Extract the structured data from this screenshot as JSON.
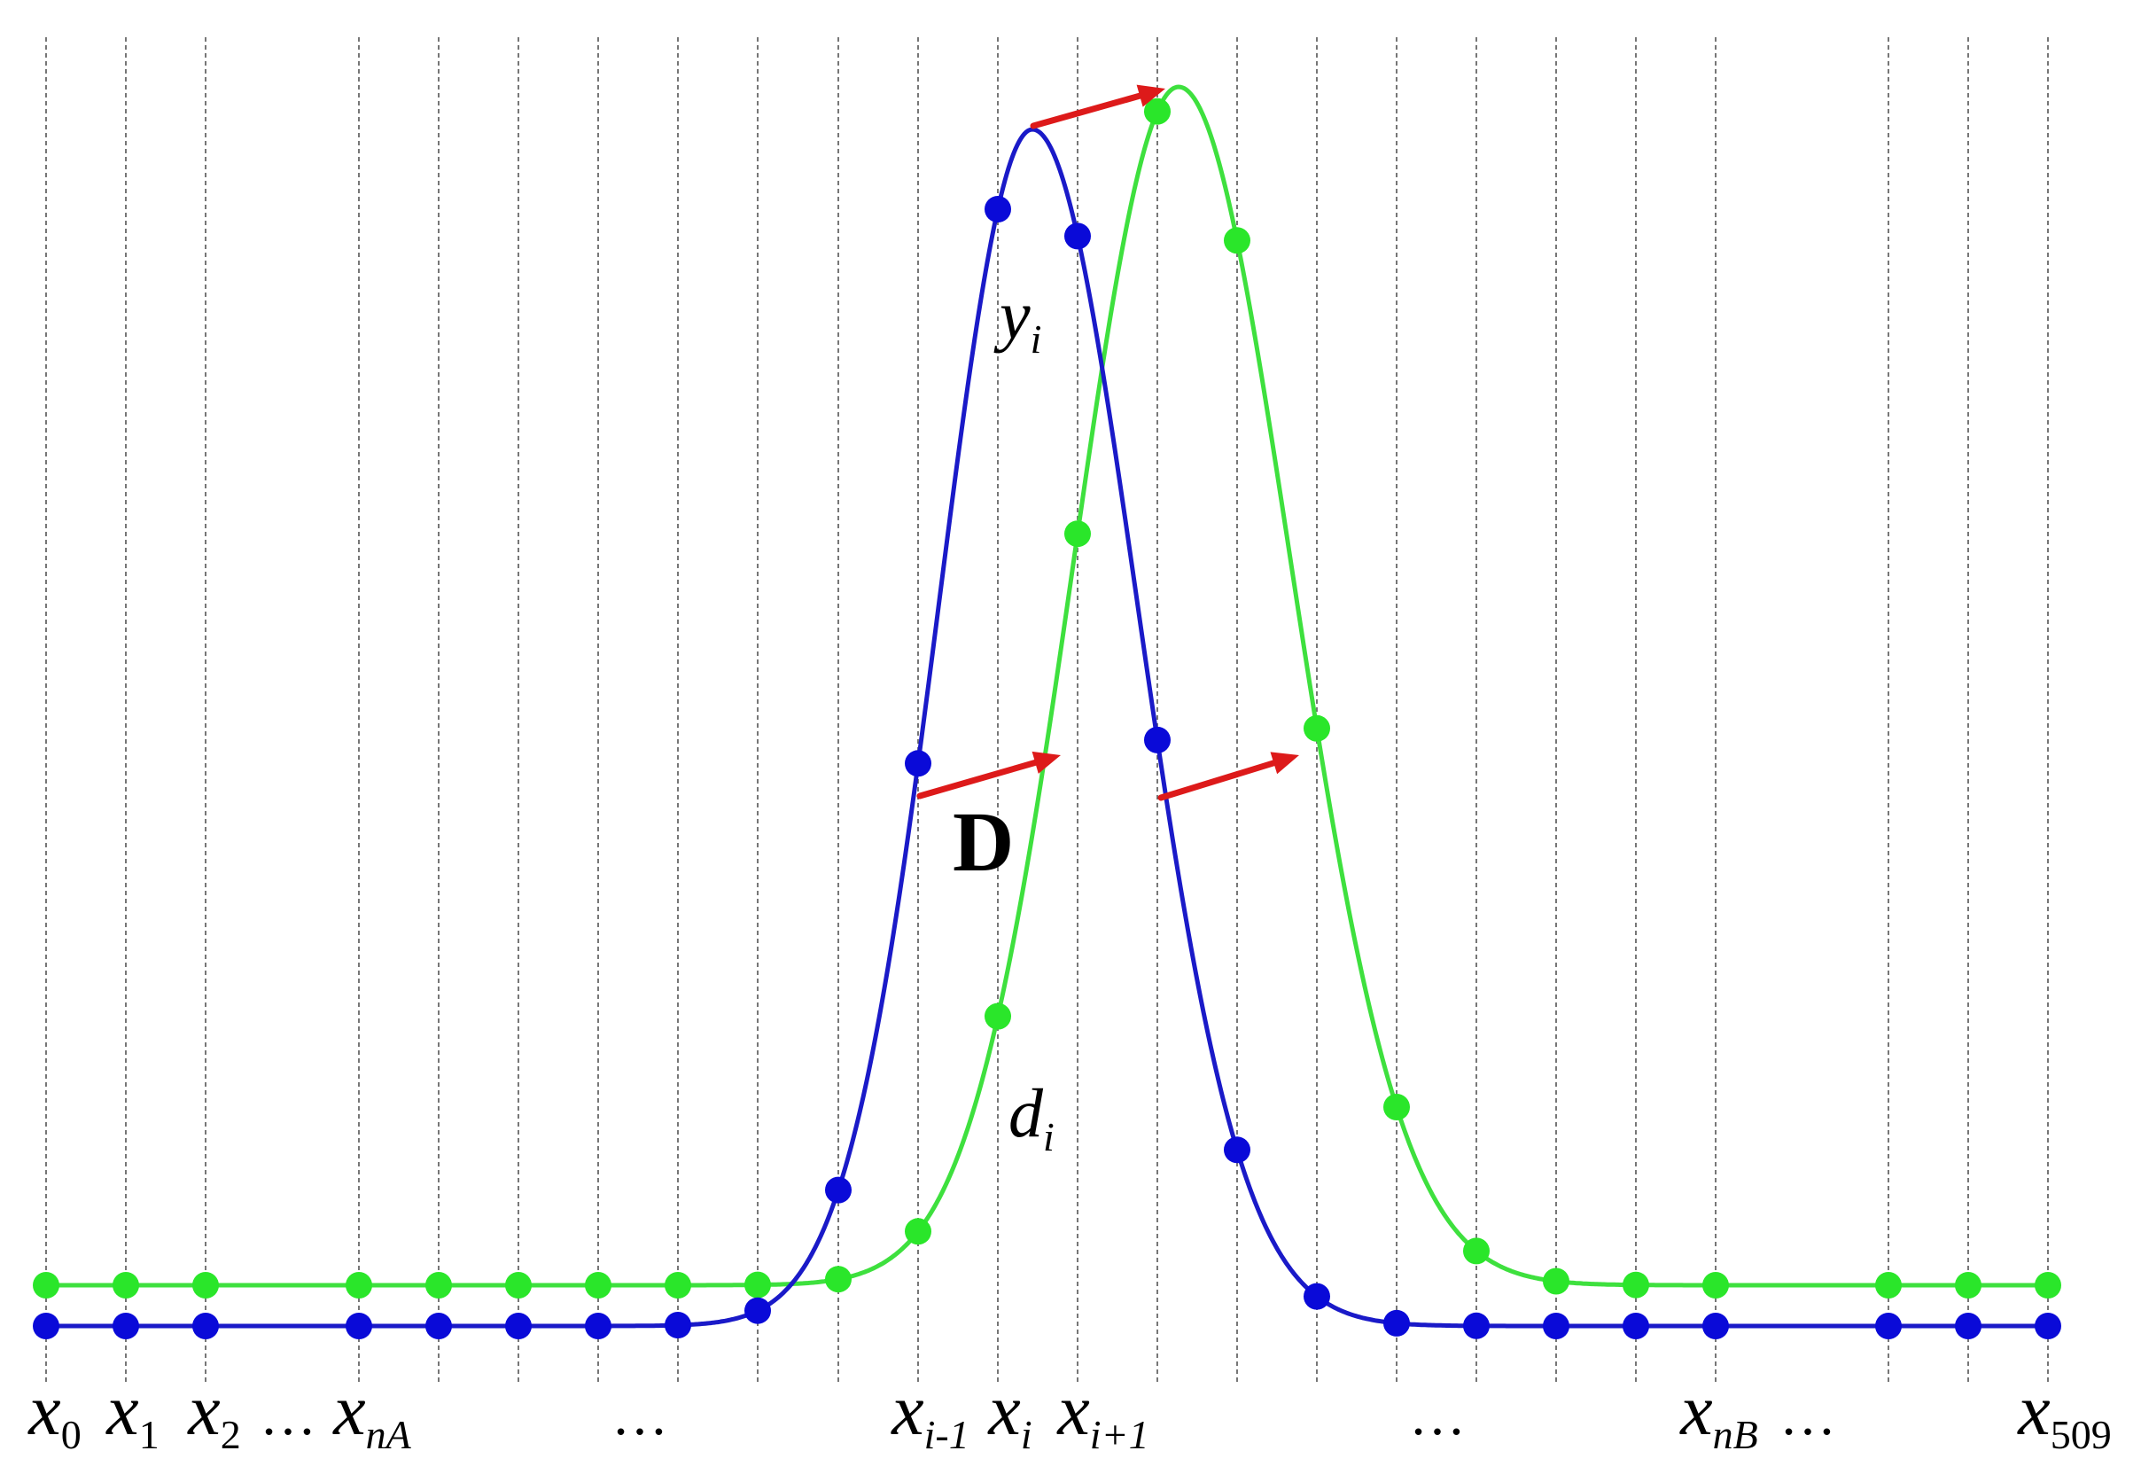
{
  "colors": {
    "blue_curve": "#1a1ac8",
    "blue_point": "#0a0ad8",
    "green_curve": "#3ee03e",
    "green_point": "#2ae62a",
    "arrow": "#dd1a1a",
    "gridline": "#555555"
  },
  "labels": {
    "y_i": {
      "base": "y",
      "sub": "i"
    },
    "d_i": {
      "base": "d",
      "sub": "i"
    },
    "D": "D"
  },
  "x_axis_labels": [
    {
      "base": "x",
      "sub": "0"
    },
    {
      "base": "x",
      "sub": "1"
    },
    {
      "base": "x",
      "sub": "2"
    },
    {
      "text": "…"
    },
    {
      "base": "x",
      "sub": "nA"
    },
    {
      "text": "…"
    },
    {
      "base": "x",
      "sub": "i-1"
    },
    {
      "base": "x",
      "sub": "i"
    },
    {
      "base": "x",
      "sub": "i+1"
    },
    {
      "text": "…"
    },
    {
      "base": "x",
      "sub": "nB"
    },
    {
      "text": "…"
    },
    {
      "base": "x",
      "sub": "509"
    }
  ]
}
